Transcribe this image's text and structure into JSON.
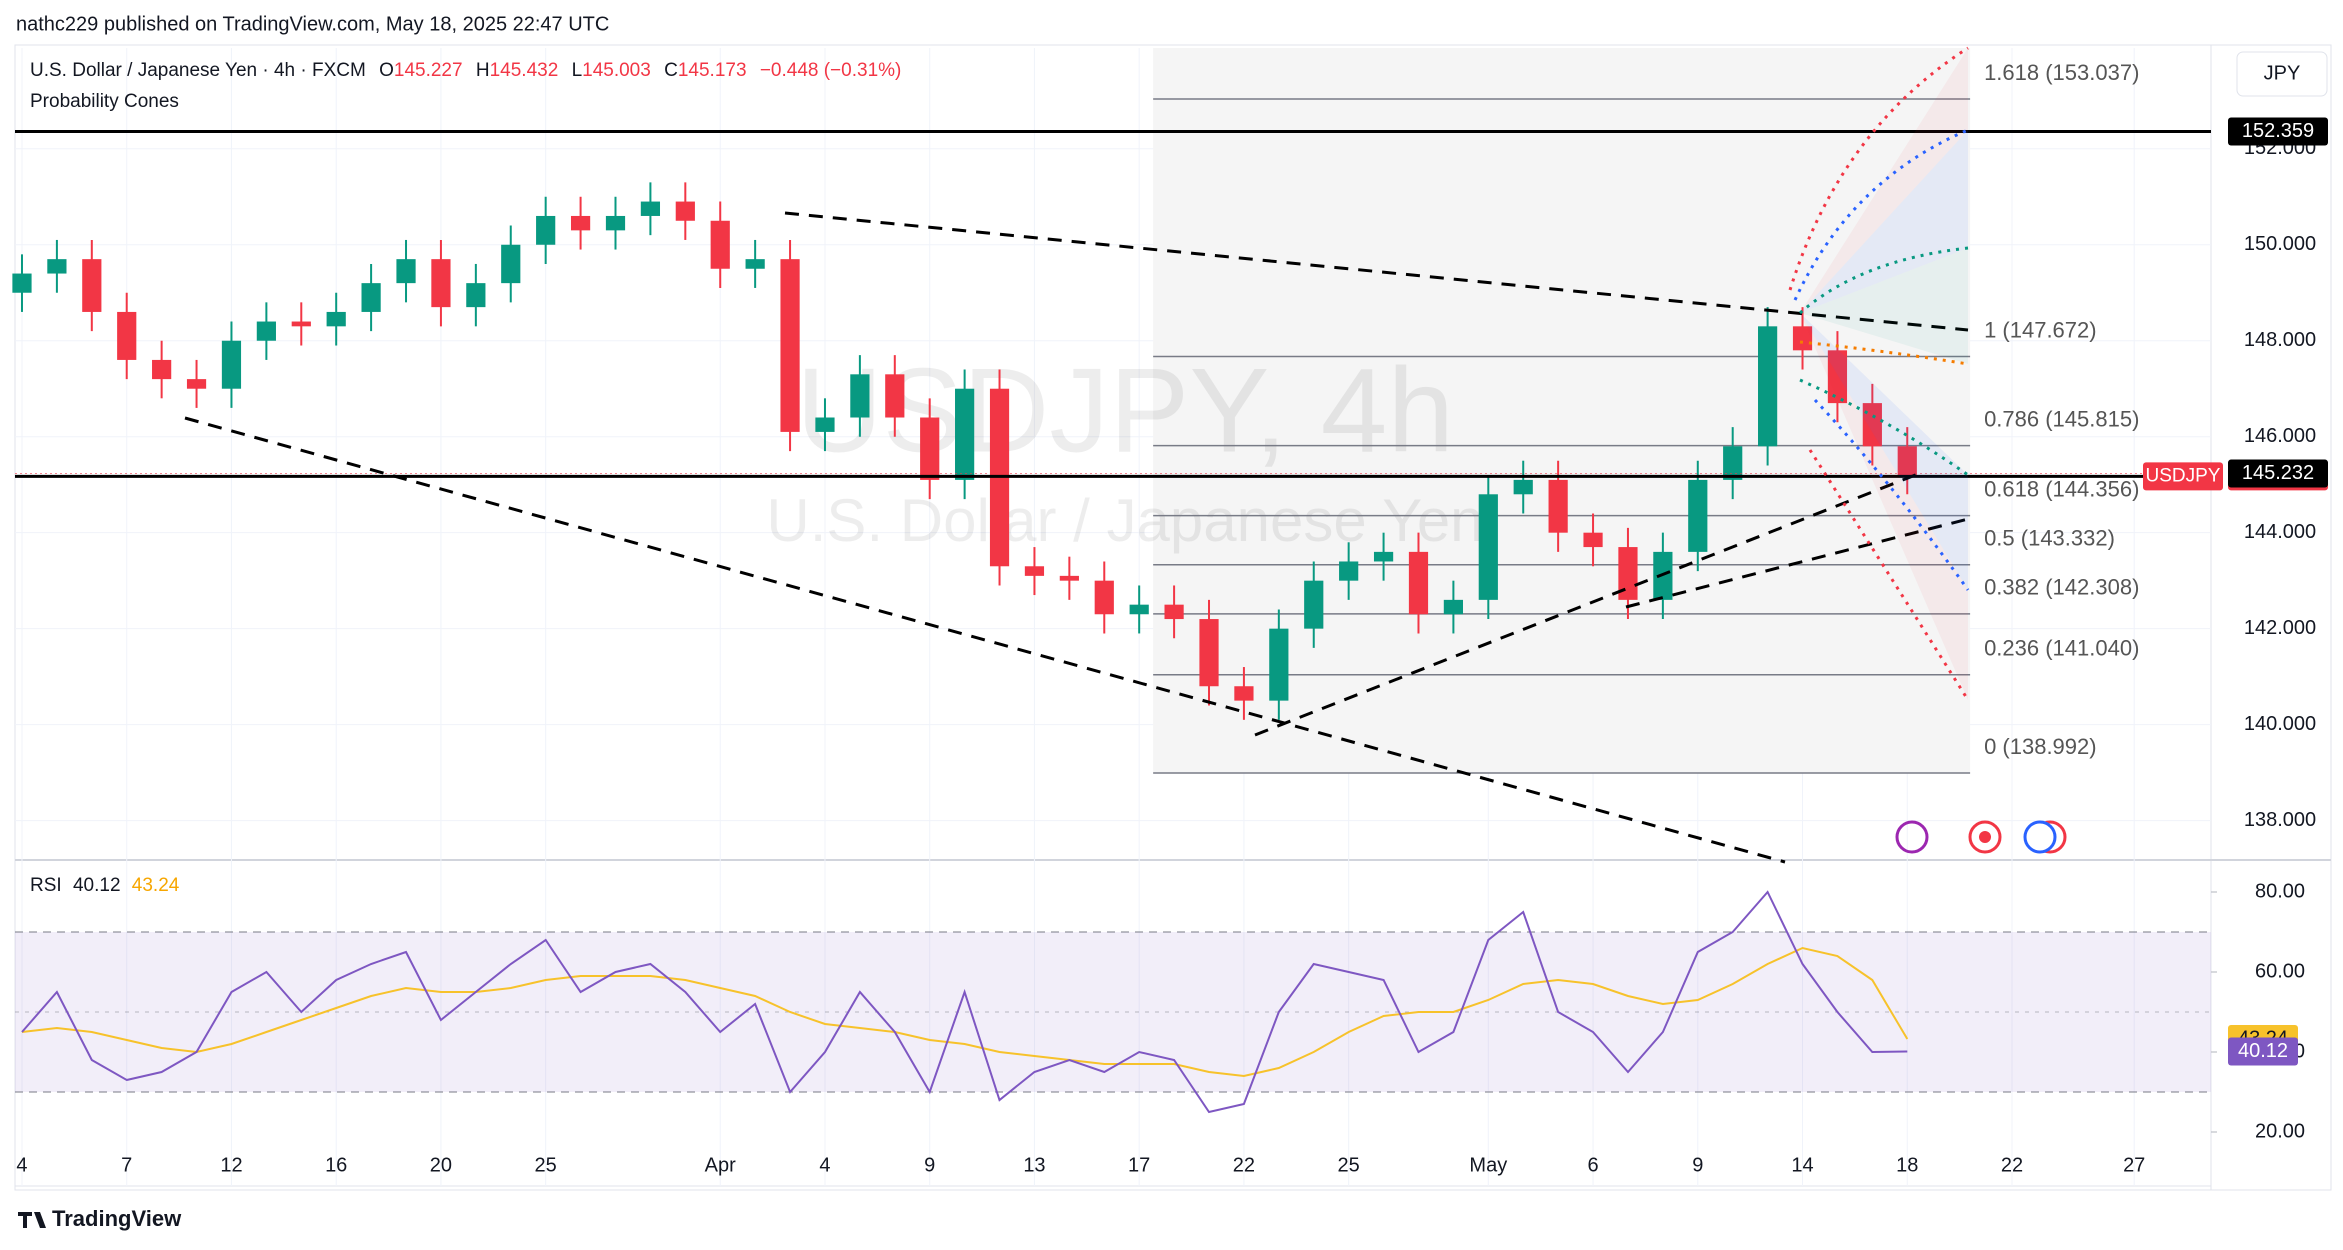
{
  "header": {
    "published": "nathc229 published on TradingView.com, May 18, 2025 22:47 UTC",
    "symbol": "U.S. Dollar / Japanese Yen · 4h · FXCM",
    "quote": [
      {
        "k": "O",
        "v": "145.227"
      },
      {
        "k": "H",
        "v": "145.432"
      },
      {
        "k": "L",
        "v": "145.003"
      },
      {
        "k": "C",
        "v": "145.173"
      }
    ],
    "change": "−0.448 (−0.31%)",
    "indicator": "Probability Cones",
    "currency": "JPY",
    "watermark": "USDJPY, 4h",
    "watermark_sub": "U.S. Dollar / Japanese Yen"
  },
  "footer": {
    "brand": "TradingView"
  },
  "chart_data": [
    {
      "type": "candlestick",
      "x": [
        0,
        1,
        2,
        3,
        4,
        5,
        6,
        7,
        8,
        9,
        10,
        11,
        12,
        13,
        14,
        15,
        16,
        17,
        18,
        19,
        20,
        21,
        22,
        23,
        24,
        25,
        26,
        27,
        28,
        29,
        30,
        31,
        32,
        33,
        34,
        35,
        36,
        37,
        38,
        39,
        40,
        41,
        42,
        43,
        44,
        45,
        46,
        47,
        48,
        49,
        50,
        51,
        52,
        53,
        54
      ],
      "open": [
        149.0,
        149.4,
        149.7,
        148.6,
        147.6,
        147.2,
        147.0,
        148.0,
        148.4,
        148.3,
        148.6,
        149.2,
        149.7,
        148.7,
        149.2,
        150.0,
        150.6,
        150.3,
        150.6,
        150.9,
        150.5,
        149.5,
        149.7,
        146.1,
        146.4,
        147.3,
        146.4,
        145.1,
        147.0,
        143.3,
        143.1,
        143.0,
        142.3,
        142.5,
        142.2,
        140.8,
        140.5,
        142.0,
        143.0,
        143.4,
        143.6,
        142.3,
        142.6,
        144.8,
        145.1,
        144.0,
        143.7,
        142.6,
        143.6,
        145.1,
        145.8,
        148.3,
        147.8,
        146.7,
        145.8
      ],
      "high": [
        149.8,
        150.1,
        150.1,
        149.0,
        148.0,
        147.6,
        148.4,
        148.8,
        148.8,
        149.0,
        149.6,
        150.1,
        150.1,
        149.6,
        150.4,
        151.0,
        151.0,
        151.0,
        151.3,
        151.3,
        150.9,
        150.1,
        150.1,
        146.8,
        147.7,
        147.7,
        146.8,
        147.4,
        147.4,
        143.7,
        143.5,
        143.4,
        142.9,
        142.9,
        142.6,
        141.2,
        142.4,
        143.4,
        143.8,
        144.0,
        144.0,
        143.0,
        145.2,
        145.5,
        145.5,
        144.4,
        144.1,
        144.0,
        145.5,
        146.2,
        148.7,
        148.7,
        148.2,
        147.1,
        146.2
      ],
      "low": [
        148.6,
        149.0,
        148.2,
        147.2,
        146.8,
        146.6,
        146.6,
        147.6,
        147.9,
        147.9,
        148.2,
        148.8,
        148.3,
        148.3,
        148.8,
        149.6,
        149.9,
        149.9,
        150.2,
        150.1,
        149.1,
        149.1,
        145.7,
        145.7,
        146.0,
        146.0,
        144.7,
        144.7,
        142.9,
        142.7,
        142.6,
        141.9,
        141.9,
        141.8,
        140.4,
        140.1,
        140.1,
        141.6,
        142.6,
        143.0,
        141.9,
        141.9,
        142.2,
        144.4,
        143.6,
        143.3,
        142.2,
        142.2,
        143.2,
        144.7,
        145.4,
        147.4,
        146.3,
        145.4,
        144.8
      ],
      "close": [
        149.4,
        149.7,
        148.6,
        147.6,
        147.2,
        147.0,
        148.0,
        148.4,
        148.3,
        148.6,
        149.2,
        149.7,
        148.7,
        149.2,
        150.0,
        150.6,
        150.3,
        150.6,
        150.9,
        150.5,
        149.5,
        149.7,
        146.1,
        146.4,
        147.3,
        146.4,
        145.1,
        147.0,
        143.3,
        143.1,
        143.0,
        142.3,
        142.5,
        142.2,
        140.8,
        140.5,
        142.0,
        143.0,
        143.4,
        143.6,
        142.3,
        142.6,
        144.8,
        145.1,
        144.0,
        143.7,
        142.6,
        143.6,
        145.1,
        145.8,
        148.3,
        147.8,
        146.7,
        145.8,
        145.2
      ],
      "up_color": "#089981",
      "down_color": "#f23645",
      "xlim": [
        -0.2,
        62.7
      ],
      "ylim": [
        137.2,
        154.1
      ],
      "xticks": [
        {
          "value": 0,
          "label": "4"
        },
        {
          "value": 3,
          "label": "7"
        },
        {
          "value": 6,
          "label": "12"
        },
        {
          "value": 9,
          "label": "16"
        },
        {
          "value": 12,
          "label": "20"
        },
        {
          "value": 15,
          "label": "25"
        },
        {
          "value": 20,
          "label": "Apr"
        },
        {
          "value": 23,
          "label": "4"
        },
        {
          "value": 26,
          "label": "9"
        },
        {
          "value": 29,
          "label": "13"
        },
        {
          "value": 32,
          "label": "17"
        },
        {
          "value": 35,
          "label": "22"
        },
        {
          "value": 38,
          "label": "25"
        },
        {
          "value": 42,
          "label": "May"
        },
        {
          "value": 45,
          "label": "6"
        },
        {
          "value": 48,
          "label": "9"
        },
        {
          "value": 51,
          "label": "14"
        },
        {
          "value": 54,
          "label": "18"
        },
        {
          "value": 57,
          "label": "22"
        },
        {
          "value": 60.5,
          "label": "27"
        }
      ],
      "yticks": [
        {
          "value": 138,
          "label": "138.000"
        },
        {
          "value": 140,
          "label": "140.000"
        },
        {
          "value": 142,
          "label": "142.000"
        },
        {
          "value": 144,
          "label": "144.000"
        },
        {
          "value": 146,
          "label": "146.000"
        },
        {
          "value": 148,
          "label": "148.000"
        },
        {
          "value": 150,
          "label": "150.000"
        },
        {
          "value": 152,
          "label": "152.000"
        }
      ],
      "fib_levels": [
        {
          "label": "1.618 (153.037)",
          "value": 153.037
        },
        {
          "label": "1 (147.672)",
          "value": 147.672
        },
        {
          "label": "0.786 (145.815)",
          "value": 145.815
        },
        {
          "label": "0.618 (144.356)",
          "value": 144.356
        },
        {
          "label": "0.5 (143.332)",
          "value": 143.332
        },
        {
          "label": "0.382 (142.308)",
          "value": 142.308
        },
        {
          "label": "0.236 (141.040)",
          "value": 141.04
        },
        {
          "label": "0 (138.992)",
          "value": 138.992
        }
      ],
      "hlines": [
        {
          "value": 152.359,
          "color": "#000000"
        },
        {
          "value": 145.173,
          "name": "USDJPY",
          "color": "#f23645"
        }
      ],
      "last_price": 145.232
    },
    {
      "type": "line",
      "x": [
        0,
        1,
        2,
        3,
        4,
        5,
        6,
        7,
        8,
        9,
        10,
        11,
        12,
        13,
        14,
        15,
        16,
        17,
        18,
        19,
        20,
        21,
        22,
        23,
        24,
        25,
        26,
        27,
        28,
        29,
        30,
        31,
        32,
        33,
        34,
        35,
        36,
        37,
        38,
        39,
        40,
        41,
        42,
        43,
        44,
        45,
        46,
        47,
        48,
        49,
        50,
        51,
        52,
        53,
        54
      ],
      "series": [
        {
          "name": "RSI",
          "color": "#7e57c2",
          "values": [
            45,
            55,
            38,
            33,
            35,
            40,
            55,
            60,
            50,
            58,
            62,
            65,
            48,
            55,
            62,
            68,
            55,
            60,
            62,
            55,
            45,
            52,
            30,
            40,
            55,
            45,
            30,
            55,
            28,
            35,
            38,
            35,
            40,
            38,
            25,
            27,
            50,
            62,
            60,
            58,
            40,
            45,
            68,
            75,
            50,
            45,
            35,
            45,
            65,
            70,
            80,
            62,
            50,
            40,
            40.12
          ]
        },
        {
          "color": "#f7c22b",
          "values": [
            45,
            46,
            45,
            43,
            41,
            40,
            42,
            45,
            48,
            51,
            54,
            56,
            55,
            55,
            56,
            58,
            59,
            59,
            59,
            58,
            56,
            54,
            50,
            47,
            46,
            45,
            43,
            42,
            40,
            39,
            38,
            37,
            37,
            37,
            35,
            34,
            36,
            40,
            45,
            49,
            50,
            50,
            53,
            57,
            58,
            57,
            54,
            52,
            53,
            57,
            62,
            66,
            64,
            58,
            43.24
          ]
        }
      ],
      "xlim": [
        -0.2,
        62.7
      ],
      "ylim": [
        7,
        88
      ],
      "yticks": [
        {
          "value": 20,
          "label": "20.00"
        },
        {
          "value": 40,
          "label": "40.00"
        },
        {
          "value": 60,
          "label": "60.00"
        },
        {
          "value": 80,
          "label": "80.00"
        }
      ],
      "band": [
        30,
        70
      ],
      "midline": 50
    }
  ]
}
